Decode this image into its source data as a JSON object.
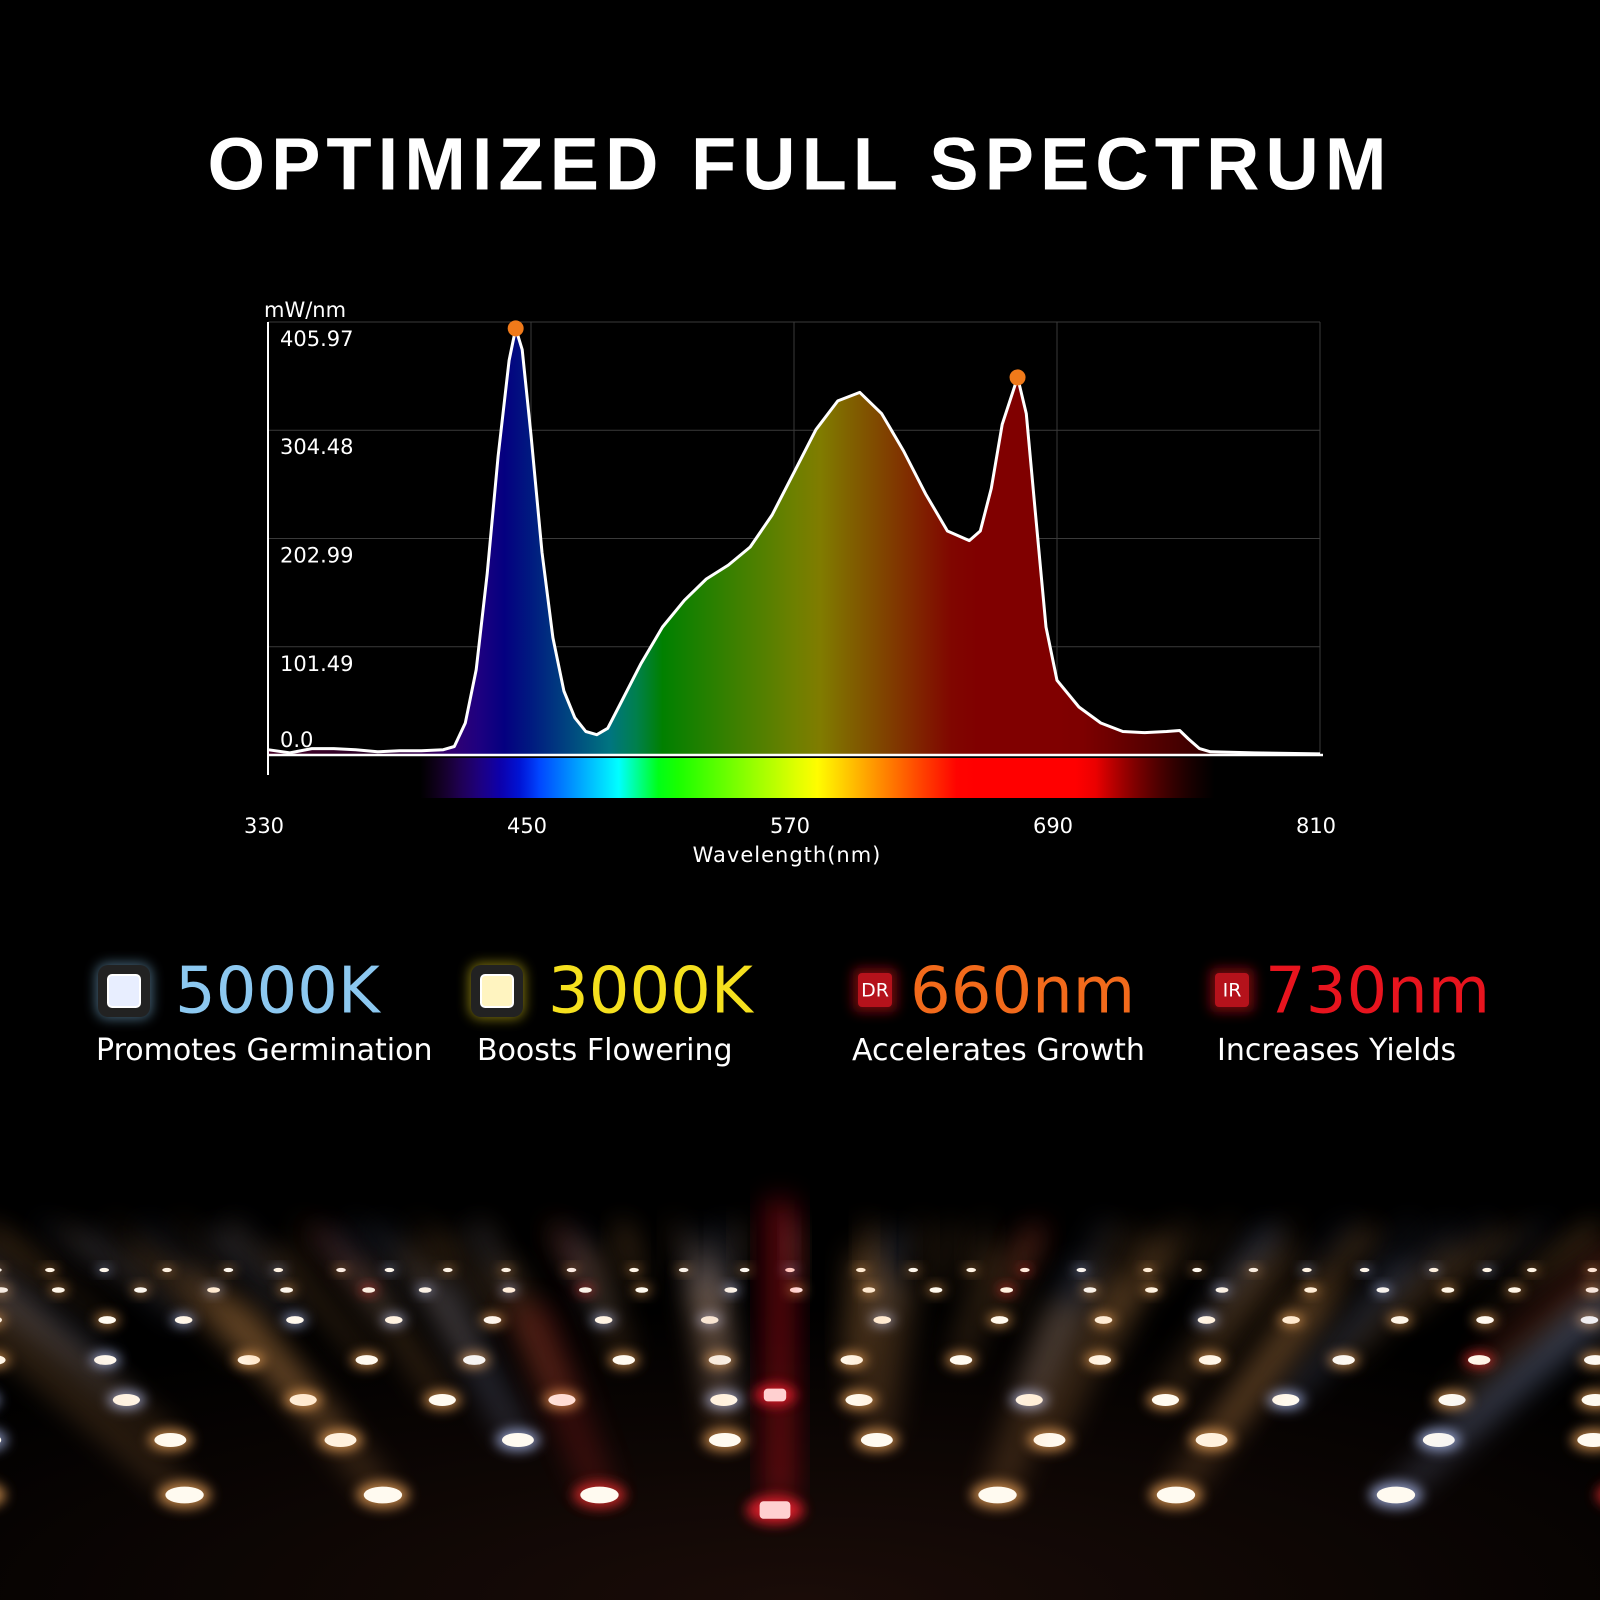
{
  "header": {
    "title": "OPTIMIZED FULL SPECTRUM"
  },
  "chart_data": {
    "type": "line",
    "y_label": "mW/nm",
    "x_label": "Wavelength(nm)",
    "xlim": [
      330,
      810
    ],
    "ylim": [
      0,
      405.97
    ],
    "xticks": [
      330,
      450,
      570,
      690,
      810
    ],
    "yticks": [
      {
        "value": 0,
        "label": "0.0"
      },
      101.49,
      202.99,
      304.48,
      405.97
    ],
    "grid": true,
    "fill": "spectrum",
    "x": [
      330,
      340,
      350,
      360,
      370,
      380,
      390,
      400,
      410,
      415,
      420,
      425,
      430,
      435,
      440,
      443,
      446,
      450,
      455,
      460,
      465,
      470,
      475,
      480,
      485,
      490,
      500,
      510,
      520,
      530,
      540,
      550,
      560,
      570,
      580,
      590,
      600,
      610,
      620,
      630,
      640,
      650,
      655,
      660,
      665,
      672,
      676,
      680,
      685,
      690,
      700,
      710,
      720,
      730,
      740,
      746,
      750,
      755,
      760,
      780,
      810
    ],
    "series": [
      {
        "color": "#ffffff",
        "values": [
          5,
          2,
          6,
          6,
          5,
          3,
          4,
          4,
          5,
          8,
          30,
          80,
          170,
          280,
          370,
          400,
          380,
          300,
          190,
          110,
          60,
          35,
          22,
          19,
          25,
          45,
          85,
          120,
          145,
          165,
          178,
          195,
          225,
          265,
          305,
          332,
          340,
          320,
          285,
          245,
          210,
          201,
          210,
          250,
          310,
          354,
          320,
          230,
          120,
          70,
          45,
          30,
          22,
          21,
          22,
          23,
          15,
          6,
          3,
          2,
          1
        ]
      }
    ],
    "markers": {
      "x": [
        443,
        672
      ],
      "values": [
        400,
        354
      ],
      "color": "#f07a1a"
    }
  },
  "features": [
    {
      "label": "5000K",
      "description": "Promotes Germination",
      "color": "#8cc8f0"
    },
    {
      "label": "3000K",
      "description": "Boosts Flowering",
      "color": "#f5e01e"
    },
    {
      "badge": "DR",
      "label": "660nm",
      "description": "Accelerates Growth",
      "color": "#f26a1b"
    },
    {
      "badge": "IR",
      "label": "730nm",
      "description": "Increases Yields",
      "color": "#e8141e"
    }
  ]
}
